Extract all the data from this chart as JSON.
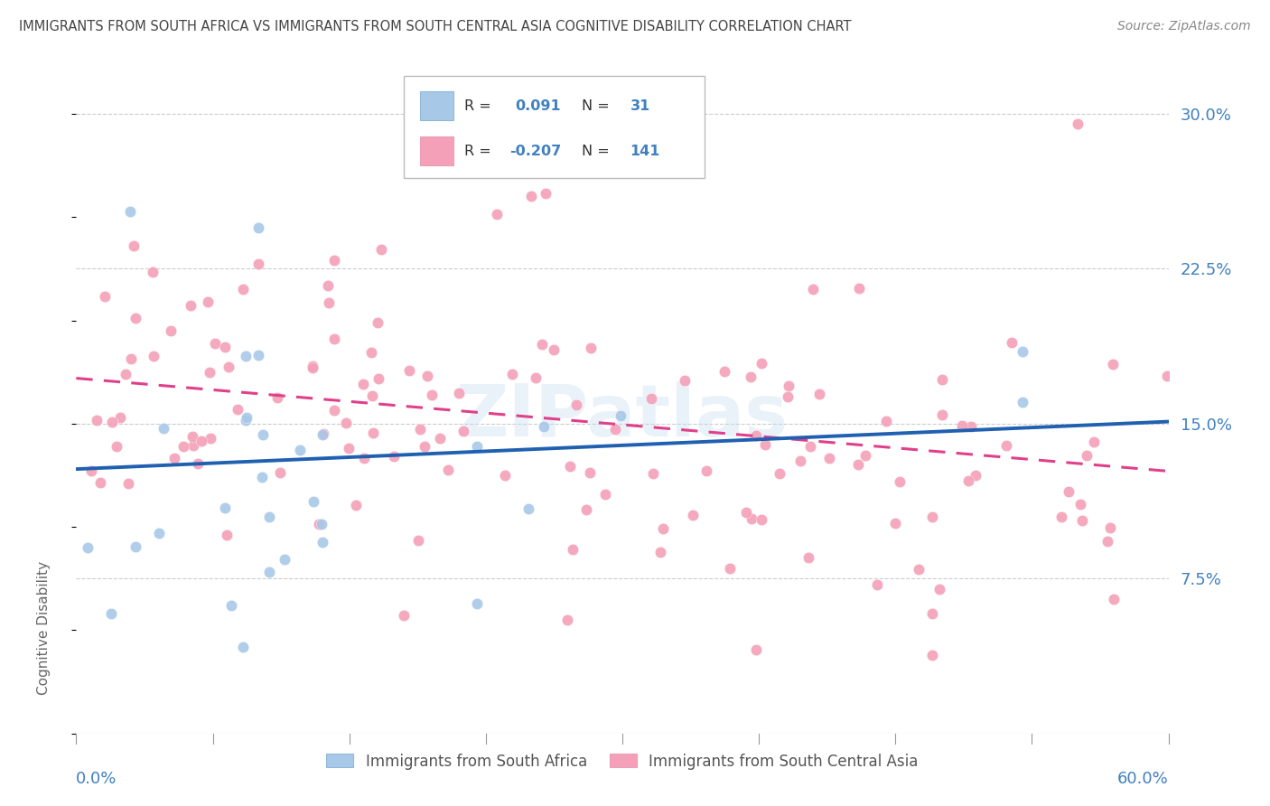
{
  "title": "IMMIGRANTS FROM SOUTH AFRICA VS IMMIGRANTS FROM SOUTH CENTRAL ASIA COGNITIVE DISABILITY CORRELATION CHART",
  "source": "Source: ZipAtlas.com",
  "ylabel": "Cognitive Disability",
  "ytick_values": [
    0.075,
    0.15,
    0.225,
    0.3
  ],
  "ytick_labels": [
    "7.5%",
    "15.0%",
    "22.5%",
    "30.0%"
  ],
  "xlim": [
    0.0,
    0.6
  ],
  "ylim": [
    0.0,
    0.32
  ],
  "blue_R": 0.091,
  "blue_N": 31,
  "pink_R": -0.207,
  "pink_N": 141,
  "blue_color": "#a8c8e8",
  "pink_color": "#f4a0b8",
  "blue_line_color": "#2060b0",
  "pink_line_color": "#e0408a",
  "blue_line_start_y": 0.128,
  "blue_line_end_y": 0.151,
  "pink_line_start_y": 0.172,
  "pink_line_end_y": 0.127,
  "legend_label_blue": "Immigrants from South Africa",
  "legend_label_pink": "Immigrants from South Central Asia",
  "watermark": "ZIPatlas",
  "background_color": "#ffffff",
  "grid_color": "#cccccc",
  "title_color": "#555555",
  "axis_label_color": "#4080c0",
  "scatter_size": 80
}
